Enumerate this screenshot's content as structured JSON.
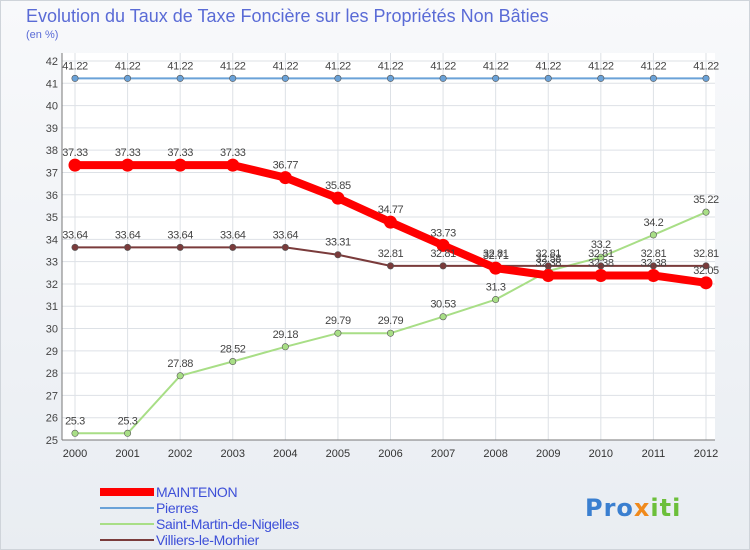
{
  "chart_data": {
    "type": "line",
    "title": "Evolution du Taux de Taxe Foncière sur les Propriétés Non Bâties",
    "subtitle": "(en %)",
    "xlabel": "",
    "ylabel": "",
    "ylim": [
      25,
      42
    ],
    "yticks": [
      "25",
      "26",
      "27",
      "28",
      "29",
      "30",
      "31",
      "32",
      "33",
      "34",
      "35",
      "36",
      "37",
      "38",
      "39",
      "40",
      "41",
      "42"
    ],
    "categories": [
      "2000",
      "2001",
      "2002",
      "2003",
      "2004",
      "2005",
      "2006",
      "2007",
      "2008",
      "2009",
      "2010",
      "2011",
      "2012"
    ],
    "series": [
      {
        "name": "MAINTENON",
        "color": "#ff0000",
        "width": "thick",
        "values": [
          37.33,
          37.33,
          37.33,
          37.33,
          36.77,
          35.85,
          34.77,
          33.73,
          32.71,
          32.38,
          32.38,
          32.38,
          32.05
        ],
        "labels": [
          "37.33",
          "37.33",
          "37.33",
          "37.33",
          "36.77",
          "35.85",
          "34.77",
          "33.73",
          "32.71",
          "32.38",
          "32.38",
          "32.38",
          "32.05"
        ]
      },
      {
        "name": "Pierres",
        "color": "#6aa2d8",
        "width": "thin",
        "values": [
          41.22,
          41.22,
          41.22,
          41.22,
          41.22,
          41.22,
          41.22,
          41.22,
          41.22,
          41.22,
          41.22,
          41.22,
          41.22
        ],
        "labels": [
          "41.22",
          "41.22",
          "41.22",
          "41.22",
          "41.22",
          "41.22",
          "41.22",
          "41.22",
          "41.22",
          "41.22",
          "41.22",
          "41.22",
          "41.22"
        ]
      },
      {
        "name": "Saint-Martin-de-Nigelles",
        "color": "#a8de86",
        "width": "thin",
        "values": [
          25.3,
          25.3,
          27.88,
          28.52,
          29.18,
          29.79,
          29.79,
          30.53,
          31.3,
          32.58,
          33.2,
          34.2,
          35.22
        ],
        "labels": [
          "25.3",
          "25.3",
          "27.88",
          "28.52",
          "29.18",
          "29.79",
          "29.79",
          "30.53",
          "31.3",
          "32.58",
          "33.2",
          "34.2",
          "35.22"
        ]
      },
      {
        "name": "Villiers-le-Morhier",
        "color": "#7a3b3b",
        "width": "thin",
        "values": [
          33.64,
          33.64,
          33.64,
          33.64,
          33.64,
          33.31,
          32.81,
          32.81,
          32.81,
          32.81,
          32.81,
          32.81,
          32.81
        ],
        "labels": [
          "33.64",
          "33.64",
          "33.64",
          "33.64",
          "33.64",
          "33.31",
          "32.81",
          "32.81",
          "32.81",
          "32.81",
          "32.81",
          "32.81",
          "32.81"
        ]
      }
    ],
    "legend_position": "bottom-left"
  },
  "logo": {
    "text_part1": "Pro",
    "text_x": "x",
    "text_part2": "iti"
  }
}
